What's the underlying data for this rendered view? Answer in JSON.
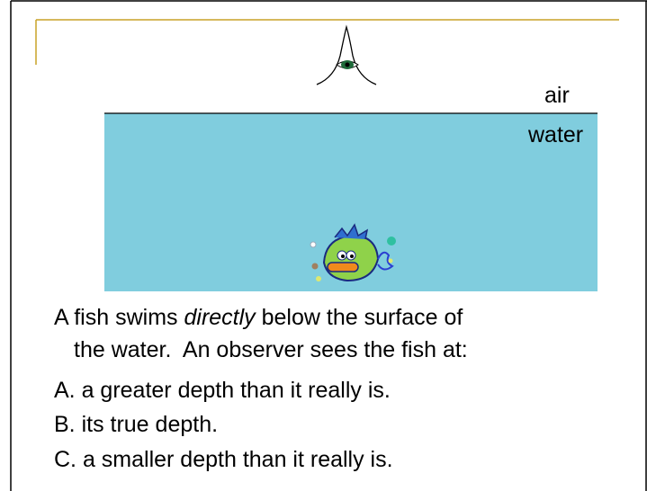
{
  "labels": {
    "air": "air",
    "water": "water"
  },
  "question": {
    "before": "A fish swims ",
    "emphasis": "directly",
    "after": " below the surface of",
    "continuation": "the water.  An observer sees the fish at:"
  },
  "options": [
    "A. a greater depth than it really is.",
    "B. its true depth.",
    "C. a smaller depth than it really is."
  ]
}
